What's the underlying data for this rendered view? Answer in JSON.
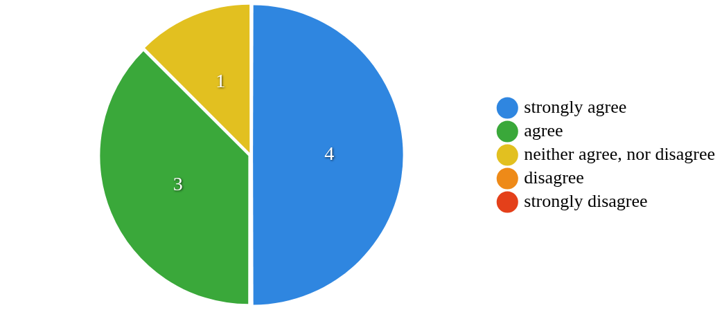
{
  "chart_data": {
    "type": "pie",
    "categories": [
      "strongly agree",
      "agree",
      "neither agree, nor disagree",
      "disagree",
      "strongly disagree"
    ],
    "values": [
      4,
      3,
      1,
      0,
      0
    ],
    "colors": [
      "#2f86e0",
      "#3aa83a",
      "#e2c020",
      "#ee8a18",
      "#e4401a"
    ],
    "value_labels": [
      "4",
      "3",
      "1",
      null,
      null
    ],
    "legend": "right"
  }
}
